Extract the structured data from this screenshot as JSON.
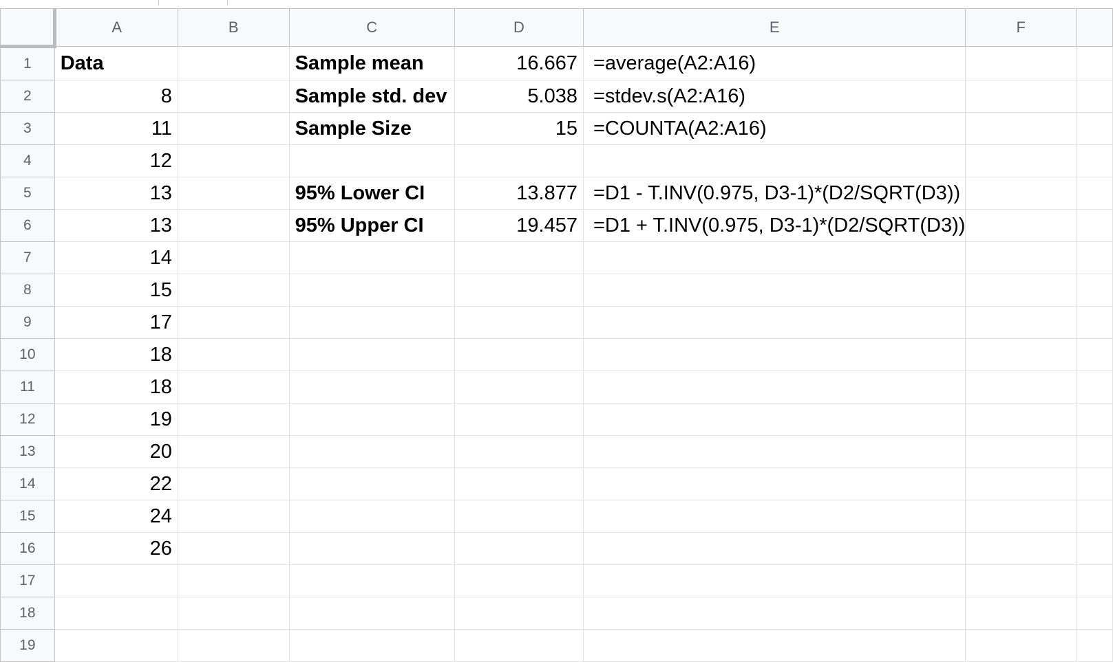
{
  "columns": [
    "A",
    "B",
    "C",
    "D",
    "E",
    "F",
    ""
  ],
  "rows": [
    {
      "n": "1",
      "A": "Data",
      "C": "Sample mean",
      "D": "16.667",
      "E": "=average(A2:A16)"
    },
    {
      "n": "2",
      "A": "8",
      "C": "Sample std. dev",
      "D": "5.038",
      "E": "=stdev.s(A2:A16)"
    },
    {
      "n": "3",
      "A": "11",
      "C": "Sample Size",
      "D": "15",
      "E": "=COUNTA(A2:A16)"
    },
    {
      "n": "4",
      "A": "12"
    },
    {
      "n": "5",
      "A": "13",
      "C": "95% Lower CI",
      "D": "13.877",
      "E": "=D1 - T.INV(0.975, D3-1)*(D2/SQRT(D3))"
    },
    {
      "n": "6",
      "A": "13",
      "C": "95% Upper CI",
      "D": "19.457",
      "E": "=D1 + T.INV(0.975, D3-1)*(D2/SQRT(D3))"
    },
    {
      "n": "7",
      "A": "14"
    },
    {
      "n": "8",
      "A": "15"
    },
    {
      "n": "9",
      "A": "17"
    },
    {
      "n": "10",
      "A": "18"
    },
    {
      "n": "11",
      "A": "18"
    },
    {
      "n": "12",
      "A": "19"
    },
    {
      "n": "13",
      "A": "20"
    },
    {
      "n": "14",
      "A": "22"
    },
    {
      "n": "15",
      "A": "24"
    },
    {
      "n": "16",
      "A": "26"
    },
    {
      "n": "17"
    },
    {
      "n": "18"
    },
    {
      "n": "19"
    }
  ]
}
